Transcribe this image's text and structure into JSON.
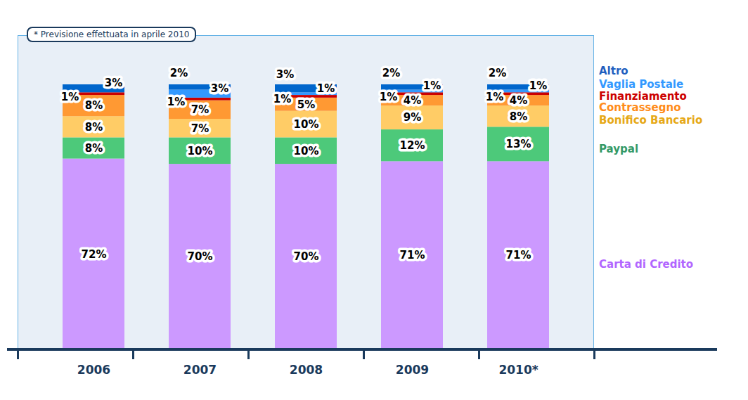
{
  "chart_data": {
    "type": "bar",
    "stacked": true,
    "data_labels": true,
    "tick_labels": "x",
    "annotations": [
      "* Previsione effettuata in aprile 2010"
    ],
    "categories": [
      "2006",
      "2007",
      "2008",
      "2009",
      "2010*"
    ],
    "ylim": [
      0,
      100
    ],
    "yticks": [],
    "legend": "right",
    "series": [
      {
        "name": "Carta di Credito",
        "color": "#cc99ff",
        "values": [
          72,
          70,
          70,
          71,
          71
        ],
        "value_labels": [
          "72%",
          "70%",
          "70%",
          "71%",
          "71%"
        ]
      },
      {
        "name": "Paypal",
        "color": "#4dc97a",
        "values": [
          8,
          10,
          10,
          12,
          13
        ],
        "value_labels": [
          "8%",
          "10%",
          "10%",
          "12%",
          "13%"
        ]
      },
      {
        "name": "Bonifico Bancario",
        "color": "#ffcc66",
        "values": [
          8,
          7,
          10,
          9,
          8
        ],
        "value_labels": [
          "8%",
          "7%",
          "10%",
          "9%",
          "8%"
        ]
      },
      {
        "name": "Contrassegno",
        "color": "#ff9933",
        "values": [
          8,
          7,
          5,
          4,
          4
        ],
        "value_labels": [
          "8%",
          "7%",
          "5%",
          "4%",
          "4%"
        ]
      },
      {
        "name": "Finanziamento",
        "color": "#cc0000",
        "values": [
          1,
          1,
          1,
          1,
          1
        ],
        "value_labels": [
          "1%",
          "1%",
          "1%",
          "1%",
          "1%"
        ]
      },
      {
        "name": "Vaglia Postale",
        "color": "#3399ff",
        "values": [
          null,
          3,
          1,
          1,
          1
        ],
        "value_labels": [
          null,
          "3%",
          "1%",
          "1%",
          "1%"
        ]
      },
      {
        "name": "Altro",
        "color": "#0066cc",
        "values": [
          3,
          2,
          3,
          2,
          2
        ],
        "value_labels": [
          "3%",
          "2%",
          "3%",
          "2%",
          "2%"
        ]
      }
    ]
  }
}
